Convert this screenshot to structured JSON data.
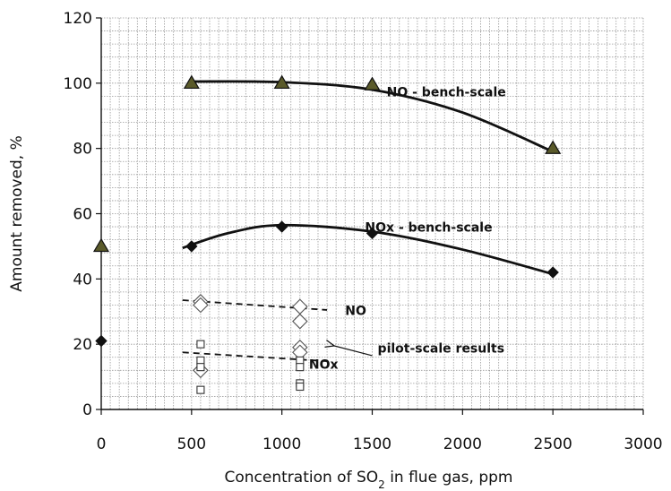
{
  "chart_data": {
    "type": "scatter",
    "xlabel_parts": [
      "Concentration of SO",
      "2",
      " in flue gas, ppm"
    ],
    "ylabel": "Amount removed, %",
    "xlim": [
      0,
      3000
    ],
    "ylim": [
      0,
      120
    ],
    "xticks": [
      0,
      500,
      1000,
      1500,
      2000,
      2500,
      3000
    ],
    "yticks": [
      0,
      20,
      40,
      60,
      80,
      100,
      120
    ],
    "grid": true,
    "series": [
      {
        "marker": "triangle",
        "points": [
          [
            0,
            50
          ],
          [
            500,
            100
          ],
          [
            1000,
            100
          ],
          [
            1500,
            99.5
          ],
          [
            2500,
            80
          ]
        ]
      },
      {
        "marker": "diamond-filled",
        "points": [
          [
            0,
            21
          ],
          [
            500,
            50
          ],
          [
            1000,
            56
          ],
          [
            1500,
            54
          ],
          [
            2500,
            42
          ]
        ]
      },
      {
        "marker": "diamond-open",
        "points": [
          [
            550,
            33
          ],
          [
            550,
            32
          ],
          [
            550,
            12
          ],
          [
            1100,
            31.5
          ],
          [
            1100,
            27
          ],
          [
            1100,
            19
          ],
          [
            1100,
            17.5
          ]
        ]
      },
      {
        "marker": "square-open",
        "points": [
          [
            550,
            20
          ],
          [
            550,
            15
          ],
          [
            550,
            13
          ],
          [
            550,
            6
          ],
          [
            1100,
            15
          ],
          [
            1100,
            13
          ],
          [
            1100,
            8
          ],
          [
            1100,
            7
          ]
        ]
      }
    ],
    "fit_lines": [
      {
        "style": "solid",
        "points": [
          [
            500,
            100.5
          ],
          [
            1000,
            100.3
          ],
          [
            1500,
            98
          ],
          [
            2000,
            91
          ],
          [
            2500,
            79
          ]
        ]
      },
      {
        "style": "solid",
        "points": [
          [
            450,
            49.5
          ],
          [
            700,
            54
          ],
          [
            1000,
            56.5
          ],
          [
            1500,
            54.5
          ],
          [
            2000,
            49
          ],
          [
            2500,
            41.5
          ]
        ]
      },
      {
        "style": "dashed",
        "points": [
          [
            450,
            33.5
          ],
          [
            1250,
            30.5
          ]
        ]
      },
      {
        "style": "dashed",
        "points": [
          [
            450,
            17.5
          ],
          [
            1250,
            14.8
          ]
        ]
      }
    ],
    "annotations": [
      {
        "text": "NO - bench-scale",
        "x": 1580,
        "y": 96
      },
      {
        "text": "NOx - bench-scale",
        "x": 1460,
        "y": 54.5
      },
      {
        "text": "NO",
        "x": 1350,
        "y": 29
      },
      {
        "text": "NOx",
        "x": 1150,
        "y": 12.5
      },
      {
        "text": "pilot-scale results",
        "x": 1530,
        "y": 17.5
      }
    ],
    "arrow": {
      "from": [
        1500,
        16.5
      ],
      "to": [
        1290,
        19.5
      ]
    }
  }
}
